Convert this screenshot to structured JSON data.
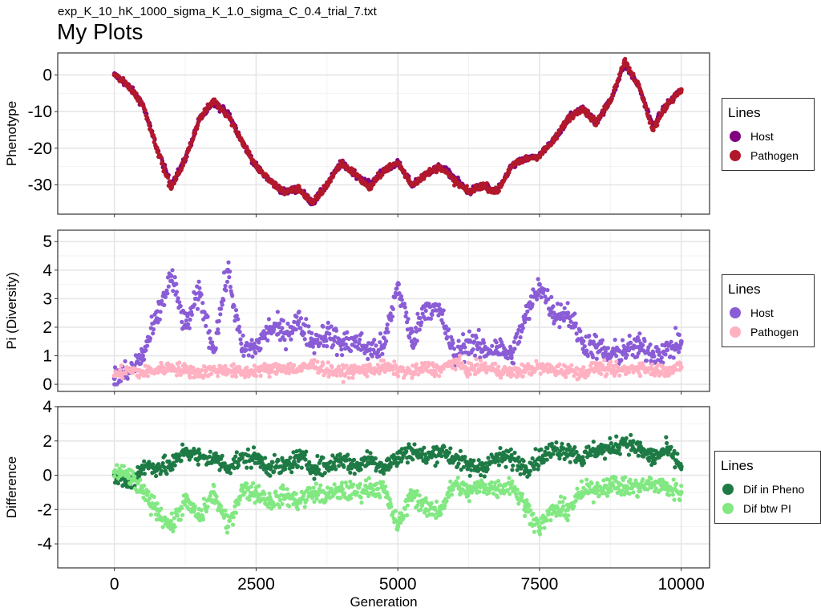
{
  "header": {
    "subtitle": "exp_K_10_hK_1000_sigma_K_1.0_sigma_C_0.4_trial_7.txt",
    "title": "My Plots"
  },
  "chart_data": [
    {
      "type": "scatter",
      "ylabel": "Phenotype",
      "xlabel": "",
      "xlim": [
        -1000,
        10500
      ],
      "ylim": [
        -38,
        6
      ],
      "yticks": [
        0,
        -10,
        -20,
        -30
      ],
      "ytick_labels": [
        "0",
        "-10",
        "-20",
        "-30"
      ],
      "xticks": [
        0,
        2500,
        5000,
        7500,
        10000
      ],
      "grid": true,
      "legend": {
        "title": "Lines",
        "placement": "right",
        "entries": [
          {
            "label": "Host",
            "color": "#800080"
          },
          {
            "label": "Pathogen",
            "color": "#b2182b"
          }
        ]
      },
      "x": [
        0,
        250,
        500,
        750,
        1000,
        1250,
        1500,
        1750,
        2000,
        2250,
        2500,
        2750,
        3000,
        3250,
        3500,
        3750,
        4000,
        4250,
        4500,
        4750,
        5000,
        5250,
        5500,
        5750,
        6000,
        6250,
        6500,
        6750,
        7000,
        7250,
        7500,
        7750,
        8000,
        8250,
        8500,
        8750,
        9000,
        9250,
        9500,
        9750,
        10000
      ],
      "series": [
        {
          "name": "Host",
          "color": "#800080",
          "values": [
            0,
            -3,
            -8,
            -20,
            -30,
            -23,
            -12,
            -8,
            -10,
            -18,
            -25,
            -29,
            -32,
            -31,
            -35,
            -30,
            -24,
            -27,
            -30,
            -26,
            -24,
            -30,
            -27,
            -25,
            -28,
            -32,
            -30,
            -32,
            -25,
            -23,
            -22,
            -18,
            -12,
            -9,
            -13,
            -7,
            3,
            -3,
            -14,
            -8,
            -4
          ]
        },
        {
          "name": "Pathogen",
          "color": "#b2182b",
          "values": [
            0,
            -3,
            -8,
            -20,
            -31,
            -23,
            -12,
            -7,
            -11,
            -18,
            -25,
            -29,
            -32,
            -31,
            -35,
            -30,
            -24,
            -27,
            -31,
            -26,
            -24,
            -30,
            -27,
            -25,
            -29,
            -32,
            -30,
            -32,
            -25,
            -23,
            -22,
            -18,
            -12,
            -9,
            -13,
            -7,
            4,
            -3,
            -15,
            -8,
            -4
          ]
        }
      ]
    },
    {
      "type": "scatter",
      "ylabel": "Pi (Diversity)",
      "xlabel": "",
      "xlim": [
        -1000,
        10500
      ],
      "ylim": [
        -0.25,
        5.4
      ],
      "yticks": [
        0,
        1,
        2,
        3,
        4,
        5
      ],
      "ytick_labels": [
        "0",
        "1",
        "2",
        "3",
        "4",
        "5"
      ],
      "xticks": [
        0,
        2500,
        5000,
        7500,
        10000
      ],
      "grid": true,
      "legend": {
        "title": "Lines",
        "placement": "right",
        "entries": [
          {
            "label": "Host",
            "color": "#8a5cd6"
          },
          {
            "label": "Pathogen",
            "color": "#ffb0c1"
          }
        ]
      },
      "x": [
        0,
        250,
        500,
        750,
        1000,
        1250,
        1500,
        1750,
        2000,
        2250,
        2500,
        2750,
        3000,
        3250,
        3500,
        3750,
        4000,
        4250,
        4500,
        4750,
        5000,
        5250,
        5500,
        5750,
        6000,
        6250,
        6500,
        6750,
        7000,
        7250,
        7500,
        7750,
        8000,
        8250,
        8500,
        8750,
        9000,
        9250,
        9500,
        9750,
        10000
      ],
      "series": [
        {
          "name": "Host",
          "color": "#8a5cd6",
          "values": [
            0.2,
            0.4,
            1.0,
            2.3,
            3.8,
            2.0,
            3.2,
            1.2,
            4.0,
            1.2,
            1.3,
            2.0,
            1.8,
            2.2,
            1.5,
            1.8,
            1.4,
            1.5,
            1.2,
            1.3,
            3.5,
            1.5,
            2.8,
            2.5,
            1.0,
            1.5,
            1.2,
            1.3,
            1.0,
            2.3,
            3.5,
            2.5,
            2.5,
            1.5,
            1.3,
            1.0,
            1.2,
            1.3,
            1.1,
            1.2,
            1.5
          ]
        },
        {
          "name": "Pathogen",
          "color": "#ffb0c1",
          "values": [
            0.3,
            0.5,
            0.4,
            0.5,
            0.6,
            0.5,
            0.4,
            0.5,
            0.5,
            0.4,
            0.5,
            0.5,
            0.6,
            0.5,
            0.7,
            0.5,
            0.4,
            0.5,
            0.5,
            0.6,
            0.5,
            0.4,
            0.6,
            0.5,
            0.8,
            0.5,
            0.6,
            0.5,
            0.4,
            0.5,
            0.6,
            0.5,
            0.5,
            0.4,
            0.6,
            0.5,
            0.5,
            0.6,
            0.5,
            0.5,
            0.6
          ]
        }
      ]
    },
    {
      "type": "scatter",
      "ylabel": "Difference",
      "xlabel": "Generation",
      "xlim": [
        -1000,
        10500
      ],
      "ylim": [
        -5.4,
        4
      ],
      "yticks": [
        4,
        2,
        0,
        -2,
        -4
      ],
      "ytick_labels": [
        "4",
        "2",
        "0",
        "-2",
        "-4"
      ],
      "xticks": [
        0,
        2500,
        5000,
        7500,
        10000
      ],
      "xtick_labels": [
        "0",
        "2500",
        "5000",
        "7500",
        "10000"
      ],
      "grid": true,
      "legend": {
        "title": "Lines",
        "placement": "right",
        "entries": [
          {
            "label": "Dif in Pheno",
            "color": "#1e7a45"
          },
          {
            "label": "Dif btw PI",
            "color": "#82e882"
          }
        ]
      },
      "x": [
        0,
        250,
        500,
        750,
        1000,
        1250,
        1500,
        1750,
        2000,
        2250,
        2500,
        2750,
        3000,
        3250,
        3500,
        3750,
        4000,
        4250,
        4500,
        4750,
        5000,
        5250,
        5500,
        5750,
        6000,
        6250,
        6500,
        6750,
        7000,
        7250,
        7500,
        7750,
        8000,
        8250,
        8500,
        8750,
        9000,
        9250,
        9500,
        9750,
        10000
      ],
      "series": [
        {
          "name": "Dif in Pheno",
          "color": "#1e7a45",
          "values": [
            0.0,
            -0.5,
            0.5,
            0.5,
            0.5,
            1.5,
            1.0,
            1.0,
            0.5,
            1.0,
            1.0,
            0.5,
            0.5,
            1.0,
            0.5,
            0.5,
            1.0,
            0.5,
            1.0,
            0.5,
            1.0,
            1.5,
            1.0,
            1.5,
            1.0,
            0.5,
            0.5,
            1.0,
            1.0,
            0.5,
            1.0,
            1.5,
            1.5,
            1.0,
            1.5,
            1.5,
            2.0,
            1.5,
            1.0,
            1.5,
            0.5
          ]
        },
        {
          "name": "Dif btw PI",
          "color": "#82e882",
          "values": [
            0.2,
            0.0,
            -1.0,
            -2.0,
            -3.0,
            -1.5,
            -2.5,
            -1.0,
            -3.0,
            -0.8,
            -1.0,
            -1.5,
            -1.2,
            -1.5,
            -1.0,
            -1.2,
            -0.9,
            -1.0,
            -0.7,
            -0.8,
            -3.0,
            -1.0,
            -2.0,
            -2.0,
            -0.5,
            -1.0,
            -0.6,
            -0.8,
            -0.5,
            -1.8,
            -3.0,
            -2.0,
            -2.0,
            -1.0,
            -0.8,
            -0.5,
            -0.7,
            -0.7,
            -0.5,
            -0.7,
            -1.0
          ]
        }
      ]
    }
  ]
}
